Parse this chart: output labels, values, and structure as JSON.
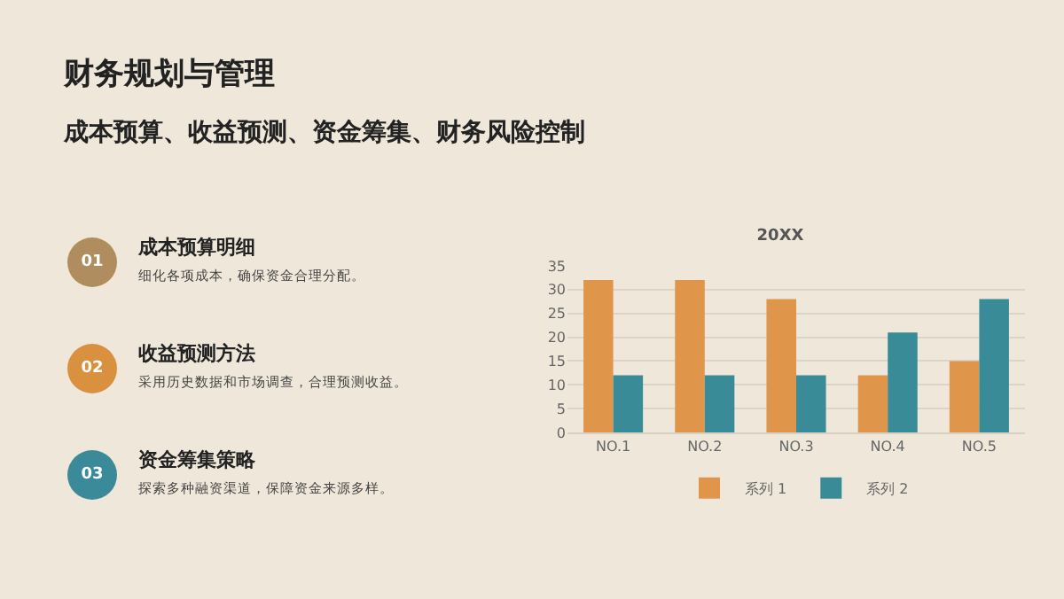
{
  "chart_data": {
    "type": "bar",
    "title": "20XX",
    "categories": [
      "NO.1",
      "NO.2",
      "NO.3",
      "NO.4",
      "NO.5"
    ],
    "series": [
      {
        "name": "系列 1",
        "color": "#e0964a",
        "values": [
          32,
          32,
          28,
          12,
          15
        ]
      },
      {
        "name": "系列 2",
        "color": "#3a8b98",
        "values": [
          12,
          12,
          12,
          21,
          28
        ]
      }
    ],
    "ylim": [
      0,
      35
    ],
    "yticks": [
      0,
      5,
      10,
      15,
      20,
      25,
      30,
      35
    ],
    "grid": "y",
    "legend": "bottom",
    "annotations": [
      "财务规划与管理",
      "成本预算、收益预测、资金筹集、财务风险控制",
      "01",
      "成本预算明细",
      "细化各项成本，确保资金合理分配。",
      "02",
      "收益预测方法",
      "采用历史数据和市场调查，合理预测收益。",
      "03",
      "资金筹集策略",
      "探索多种融资渠道，保障资金来源多样。"
    ]
  }
}
